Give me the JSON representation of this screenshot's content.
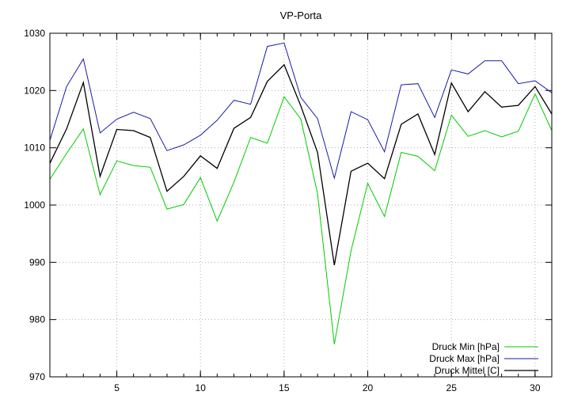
{
  "chart_data": {
    "type": "line",
    "title": "VP-Porta",
    "xlabel": "",
    "ylabel": "",
    "xlim": [
      1,
      31
    ],
    "ylim": [
      970,
      1030
    ],
    "xticks": [
      5,
      10,
      15,
      20,
      25,
      30
    ],
    "yticks": [
      970,
      980,
      990,
      1000,
      1010,
      1020,
      1030
    ],
    "grid": true,
    "legend_position": "bottom-right",
    "x": [
      1,
      2,
      3,
      4,
      5,
      6,
      7,
      8,
      9,
      10,
      11,
      12,
      13,
      14,
      15,
      16,
      17,
      18,
      19,
      20,
      21,
      22,
      23,
      24,
      25,
      26,
      27,
      28,
      29,
      30,
      31
    ],
    "series": [
      {
        "name": "Druck Min [hPa]",
        "color": "#00cc00",
        "values": [
          1004.5,
          1009.0,
          1013.3,
          1001.8,
          1007.7,
          1006.9,
          1006.6,
          999.3,
          1000.1,
          1004.8,
          997.2,
          1004.0,
          1011.8,
          1010.8,
          1018.9,
          1015.0,
          1002.0,
          975.7,
          992.0,
          1003.8,
          998.0,
          1009.2,
          1008.5,
          1006.0,
          1015.7,
          1012.0,
          1013.0,
          1011.9,
          1012.9,
          1019.4,
          1013.0
        ]
      },
      {
        "name": "Druck Max [hPa]",
        "color": "#1a1aaa",
        "values": [
          1011.3,
          1020.7,
          1025.5,
          1012.6,
          1015.0,
          1016.2,
          1015.1,
          1009.5,
          1010.5,
          1012.2,
          1014.8,
          1018.3,
          1017.6,
          1027.7,
          1028.3,
          1018.8,
          1015.1,
          1004.7,
          1016.3,
          1014.9,
          1009.3,
          1021.0,
          1021.2,
          1015.3,
          1023.6,
          1022.9,
          1025.2,
          1025.2,
          1021.2,
          1021.7,
          1019.6
        ]
      },
      {
        "name": "Druck Mittel [C]",
        "color": "#000000",
        "values": [
          1007.3,
          1013.3,
          1021.4,
          1005.0,
          1013.2,
          1013.0,
          1011.8,
          1002.4,
          1005.0,
          1008.6,
          1006.4,
          1013.4,
          1015.3,
          1021.6,
          1024.5,
          1017.3,
          1009.2,
          989.5,
          1005.9,
          1007.3,
          1004.6,
          1014.1,
          1015.9,
          1008.8,
          1021.3,
          1016.3,
          1019.8,
          1017.1,
          1017.4,
          1020.7,
          1015.9
        ]
      }
    ]
  }
}
